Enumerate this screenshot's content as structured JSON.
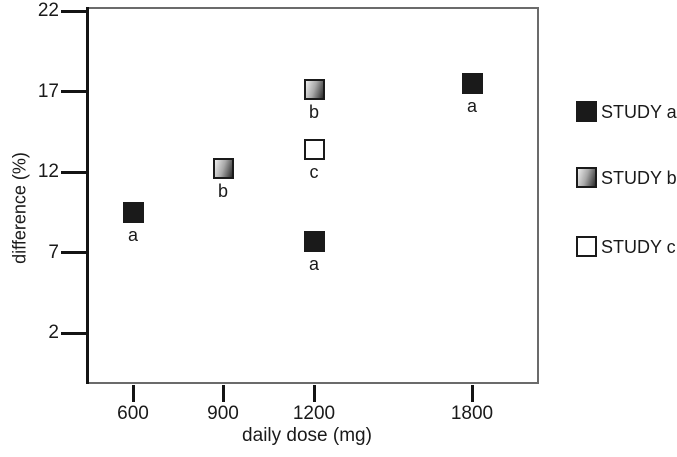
{
  "chart_data": {
    "type": "scatter",
    "title": "",
    "xlabel": "daily dose (mg)",
    "ylabel": "difference (%)",
    "x_tick_labels": [
      "600",
      "900",
      "1200",
      "1800"
    ],
    "y_tick_labels": [
      "22",
      "17",
      "12",
      "7",
      "2"
    ],
    "y_axis_top_value": 22,
    "y_axis_bottom_value": 2,
    "grid": false,
    "legend_position": "right-outside",
    "series": [
      {
        "name": "STUDY a",
        "marker": "black-square",
        "point_label": "a",
        "points": [
          {
            "x": 600,
            "y": 9.5
          },
          {
            "x": 1200,
            "y": 7.7
          },
          {
            "x": 1800,
            "y": 17.5
          }
        ]
      },
      {
        "name": "STUDY b",
        "marker": "gradient-square",
        "point_label": "b",
        "points": [
          {
            "x": 900,
            "y": 12.2
          },
          {
            "x": 1200,
            "y": 17.1
          }
        ]
      },
      {
        "name": "STUDY c",
        "marker": "white-square",
        "point_label": "c",
        "points": [
          {
            "x": 1200,
            "y": 13.4
          }
        ]
      }
    ],
    "colors": {
      "axis": "#141414",
      "box_border": "#6b6b6b",
      "marker_black": "#1a1a1a",
      "marker_gradient_light": "#ededed",
      "marker_gradient_dark": "#2e2e2e",
      "marker_white_fill": "#ffffff",
      "background": "#ffffff",
      "text": "#1a1a1a"
    }
  }
}
